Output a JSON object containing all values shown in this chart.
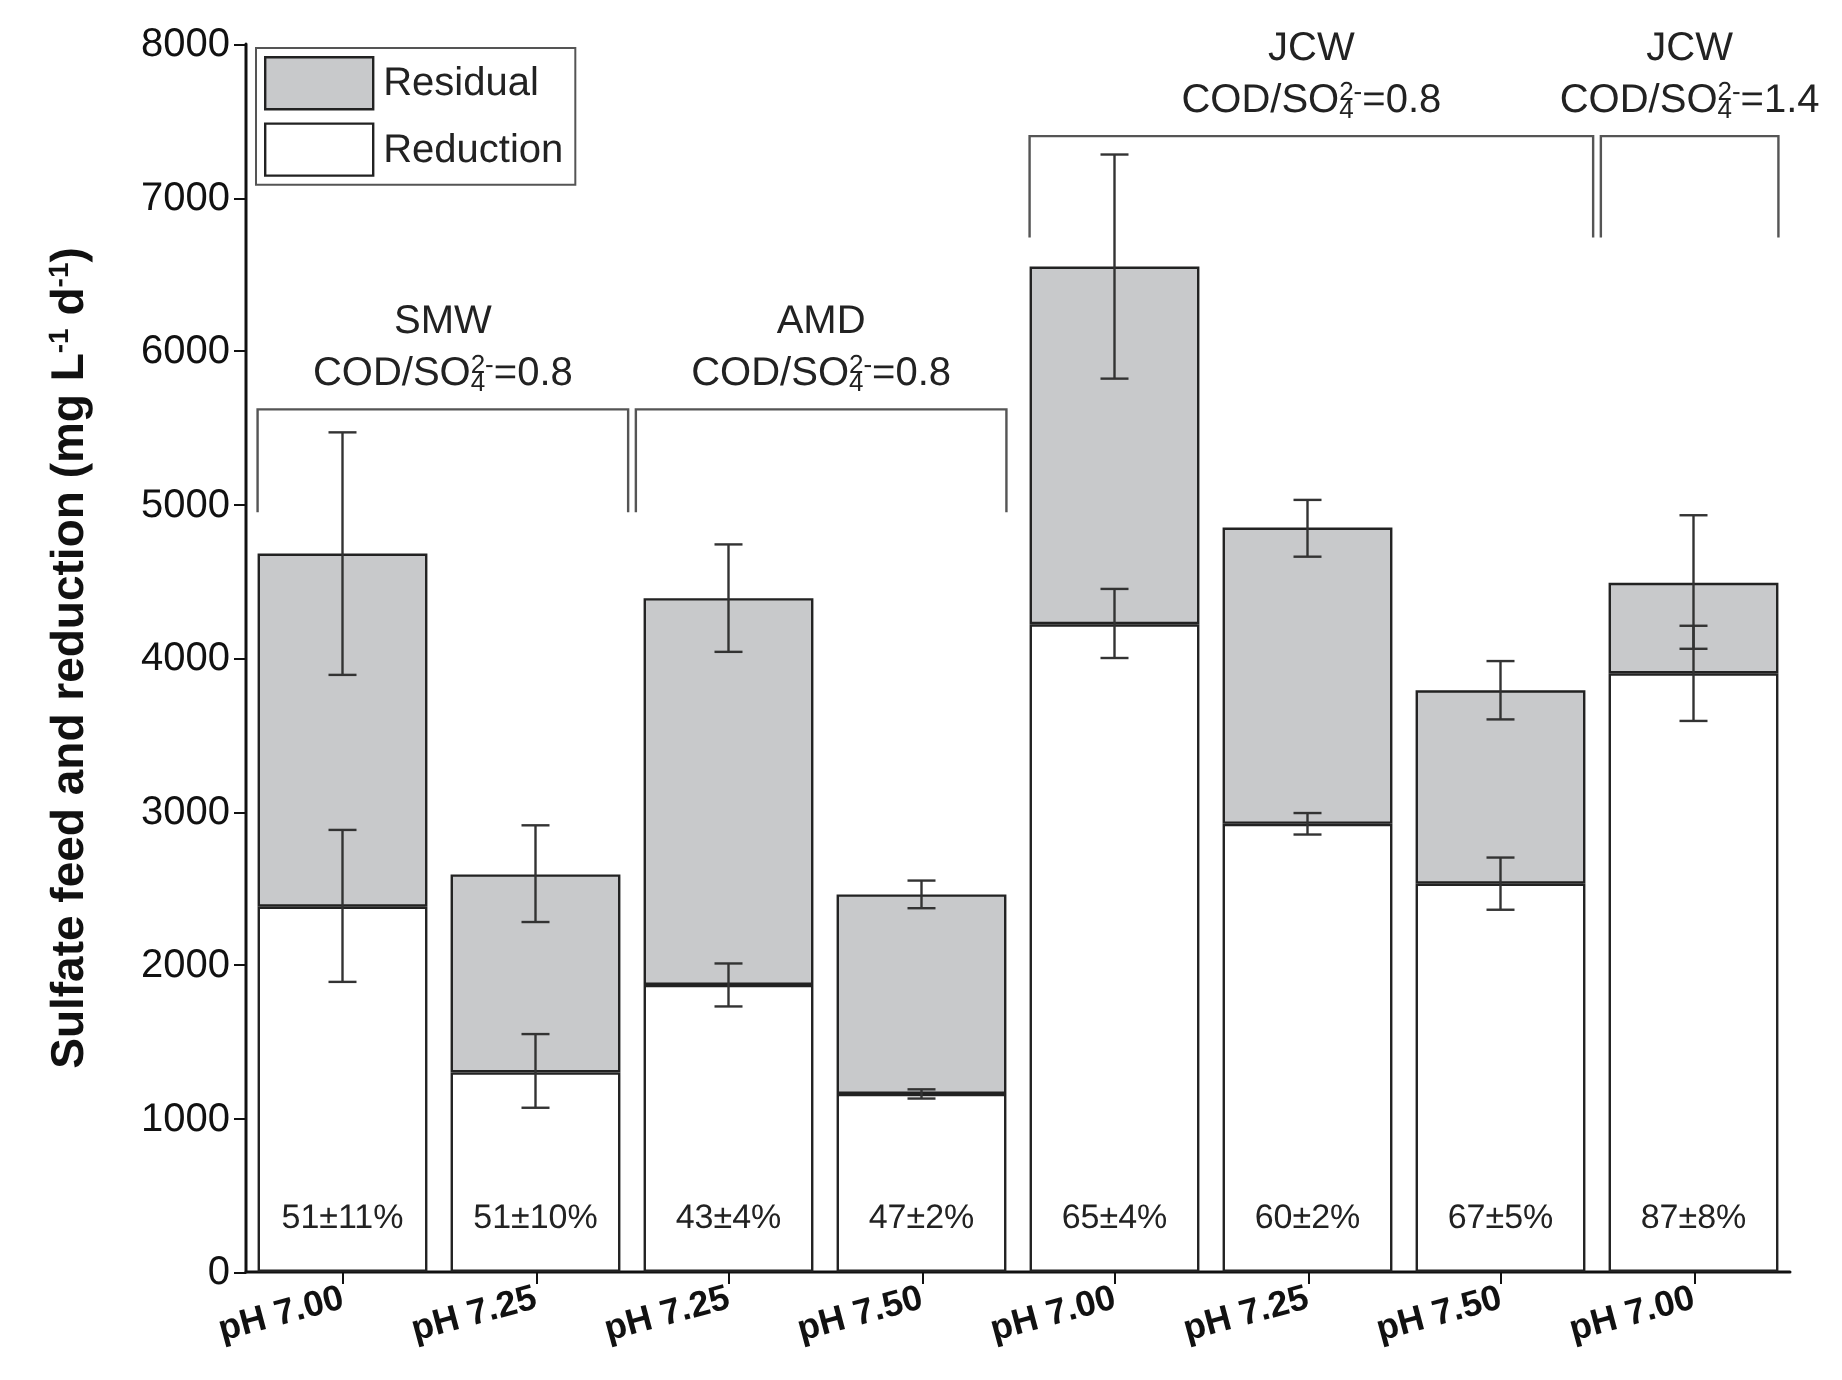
{
  "chart_data": {
    "type": "bar",
    "stacked": true,
    "ylabel": "Sulfate feed and reduction (mg L$^{-1}$ d$^{-1}$)",
    "categories": [
      "pH 7.00",
      "pH 7.25",
      "pH 7.25",
      "pH 7.50",
      "pH 7.00",
      "pH 7.25",
      "pH 7.50",
      "pH 7.00"
    ],
    "series": [
      {
        "name": "Reduction",
        "color": "#ffffff",
        "values": [
          2380,
          1300,
          1870,
          1160,
          4220,
          2920,
          2530,
          3900
        ],
        "errors": [
          [
            1890,
            2880
          ],
          [
            1070,
            1550
          ],
          [
            1730,
            2010
          ],
          [
            1130,
            1190
          ],
          [
            4000,
            4450
          ],
          [
            2850,
            2990
          ],
          [
            2360,
            2700
          ],
          [
            3590,
            4210
          ]
        ]
      },
      {
        "name": "Residual",
        "color": "#c8c9cb",
        "values": [
          2300,
          1290,
          2520,
          1300,
          2330,
          1930,
          1260,
          590
        ],
        "errors": [
          [
            3890,
            5470
          ],
          [
            2280,
            2910
          ],
          [
            4040,
            4740
          ],
          [
            2370,
            2550
          ],
          [
            5820,
            7280
          ],
          [
            4660,
            5030
          ],
          [
            3600,
            3980
          ],
          [
            4060,
            4930
          ]
        ]
      }
    ],
    "ylim": [
      0,
      8000
    ],
    "yticks": [
      0,
      1000,
      2000,
      3000,
      4000,
      5000,
      6000,
      7000,
      8000
    ],
    "legend": "top left",
    "annotations": [
      "SMW",
      "COD/SO$_{4}$$^{2-}$=0.8",
      "AMD",
      "COD/SO$_{4}$$^{2-}$=0.8",
      "JCW",
      "COD/SO$_{4}$$^{2-}$=0.8",
      "JCW",
      "COD/SO$_{4}$$^{2-}$=1.4",
      "51±11%",
      "51±10%",
      "43±4%",
      "47±2%",
      "65±4%",
      "60±2%",
      "67±5%",
      "87±8%"
    ]
  }
}
